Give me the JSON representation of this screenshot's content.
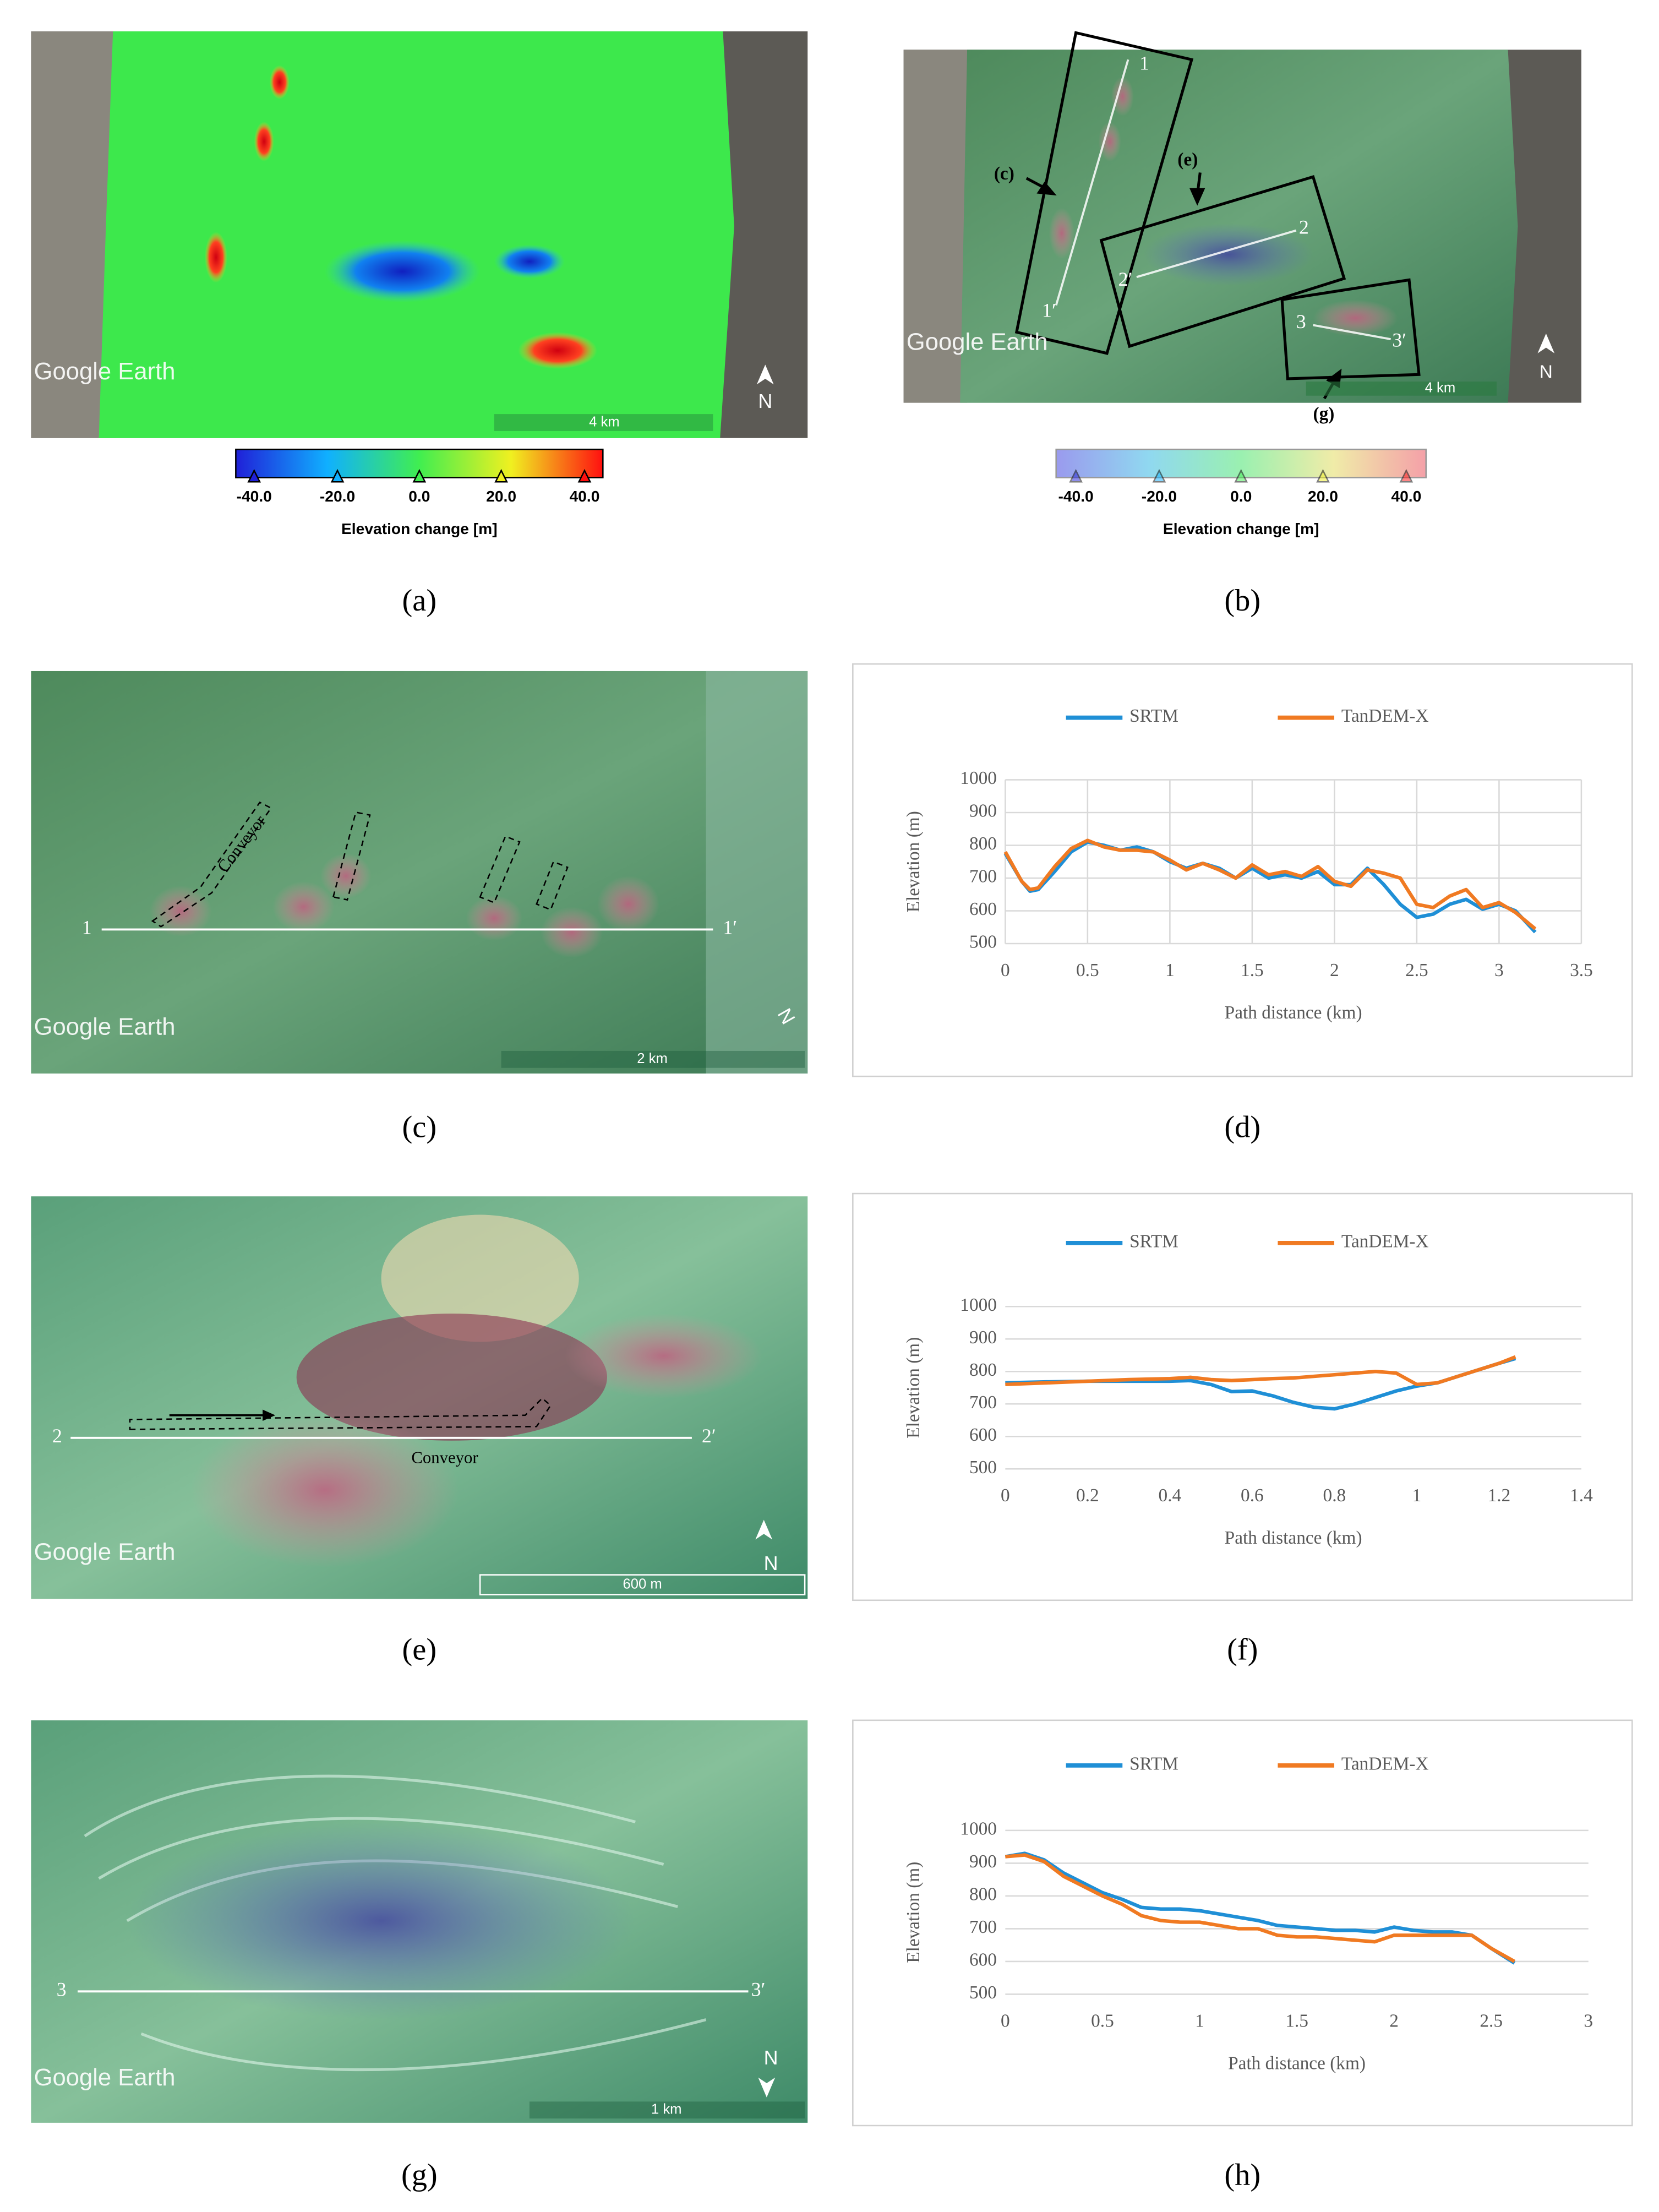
{
  "figure": {
    "panel_a": {
      "watermark": "Google Earth",
      "scale": "4 km",
      "north": "N",
      "colorbar": {
        "ticks": [
          "-40.0",
          "-20.0",
          "0.0",
          "20.0",
          "40.0"
        ],
        "title": "Elevation change [m]"
      },
      "caption": "(a)"
    },
    "panel_b": {
      "watermark": "Google Earth",
      "scale": "4 km",
      "north": "N",
      "profiles": [
        "1",
        "1′",
        "2",
        "2′",
        "3",
        "3′"
      ],
      "insets": [
        "(c)",
        "(e)",
        "(g)"
      ],
      "colorbar": {
        "ticks": [
          "-40.0",
          "-20.0",
          "0.0",
          "20.0",
          "40.0"
        ],
        "title": "Elevation change [m]"
      },
      "caption": "(b)"
    },
    "panel_c": {
      "watermark": "Google Earth",
      "scale": "2 km",
      "north": "N",
      "profile": [
        "1",
        "1′"
      ],
      "annotation": "Conveyor",
      "caption": "(c)"
    },
    "panel_e": {
      "watermark": "Google Earth",
      "scale": "600 m",
      "north": "N",
      "profile": [
        "2",
        "2′"
      ],
      "annotation": "Conveyor",
      "caption": "(e)"
    },
    "panel_g": {
      "watermark": "Google Earth",
      "scale": "1 km",
      "north": "N",
      "profile": [
        "3",
        "3′"
      ],
      "caption": "(g)"
    }
  },
  "chart_data": [
    {
      "type": "line",
      "caption": "(d)",
      "xlabel": "Path distance (km)",
      "ylabel": "Elevation (m)",
      "legend": "top",
      "xgrid": true,
      "ygrid": true,
      "xlim": [
        0,
        3.5
      ],
      "xticks": [
        0,
        0.5,
        1,
        1.5,
        2,
        2.5,
        3,
        3.5
      ],
      "ylim": [
        500,
        1000
      ],
      "yticks": [
        500,
        600,
        700,
        800,
        900,
        1000
      ],
      "x": [
        0,
        0.1,
        0.15,
        0.2,
        0.3,
        0.4,
        0.5,
        0.6,
        0.7,
        0.8,
        0.9,
        1.0,
        1.1,
        1.2,
        1.3,
        1.4,
        1.5,
        1.6,
        1.7,
        1.8,
        1.9,
        2.0,
        2.1,
        2.2,
        2.3,
        2.4,
        2.5,
        2.6,
        2.7,
        2.8,
        2.9,
        3.0,
        3.1,
        3.22
      ],
      "series": [
        {
          "name": "SRTM",
          "color": "#1f8fd6",
          "values": [
            775,
            690,
            660,
            665,
            720,
            780,
            810,
            800,
            785,
            795,
            780,
            750,
            730,
            745,
            730,
            700,
            730,
            700,
            710,
            700,
            720,
            680,
            680,
            730,
            680,
            620,
            580,
            590,
            620,
            635,
            605,
            620,
            600,
            535
          ]
        },
        {
          "name": "TanDEM-X",
          "color": "#f07a22",
          "values": [
            780,
            690,
            665,
            670,
            735,
            790,
            815,
            795,
            785,
            785,
            780,
            755,
            725,
            745,
            725,
            700,
            740,
            710,
            720,
            705,
            735,
            690,
            675,
            725,
            715,
            700,
            620,
            610,
            645,
            665,
            610,
            625,
            595,
            545
          ]
        }
      ]
    },
    {
      "type": "line",
      "caption": "(f)",
      "xlabel": "Path distance (km)",
      "ylabel": "Elevation (m)",
      "legend": "top",
      "xgrid": false,
      "ygrid": true,
      "xlim": [
        0,
        1.4
      ],
      "xticks": [
        0,
        0.2,
        0.4,
        0.6,
        0.8,
        1,
        1.2,
        1.4
      ],
      "ylim": [
        500,
        1000
      ],
      "yticks": [
        500,
        600,
        700,
        800,
        900,
        1000
      ],
      "x": [
        0,
        0.1,
        0.2,
        0.3,
        0.4,
        0.45,
        0.5,
        0.55,
        0.6,
        0.65,
        0.7,
        0.75,
        0.8,
        0.85,
        0.9,
        0.95,
        1.0,
        1.05,
        1.1,
        1.2,
        1.24
      ],
      "series": [
        {
          "name": "SRTM",
          "color": "#1f8fd6",
          "values": [
            765,
            768,
            770,
            770,
            770,
            772,
            760,
            738,
            740,
            725,
            705,
            690,
            685,
            700,
            720,
            740,
            755,
            765,
            785,
            825,
            840
          ]
        },
        {
          "name": "TanDEM-X",
          "color": "#f07a22",
          "values": [
            760,
            765,
            770,
            775,
            778,
            782,
            775,
            772,
            775,
            778,
            780,
            785,
            790,
            795,
            800,
            795,
            760,
            765,
            785,
            825,
            845
          ]
        }
      ]
    },
    {
      "type": "line",
      "caption": "(h)",
      "xlabel": "Path distance (km)",
      "ylabel": "Elevation (m)",
      "legend": "top",
      "xgrid": false,
      "ygrid": true,
      "xlim": [
        0,
        3
      ],
      "xticks": [
        0,
        0.5,
        1,
        1.5,
        2,
        2.5,
        3
      ],
      "ylim": [
        500,
        1000
      ],
      "yticks": [
        500,
        600,
        700,
        800,
        900,
        1000
      ],
      "x": [
        0,
        0.1,
        0.2,
        0.3,
        0.4,
        0.5,
        0.6,
        0.7,
        0.8,
        0.9,
        1.0,
        1.1,
        1.2,
        1.3,
        1.4,
        1.5,
        1.6,
        1.7,
        1.8,
        1.9,
        2.0,
        2.1,
        2.2,
        2.3,
        2.4,
        2.5,
        2.62
      ],
      "series": [
        {
          "name": "SRTM",
          "color": "#1f8fd6",
          "values": [
            920,
            930,
            910,
            870,
            840,
            810,
            790,
            765,
            760,
            760,
            755,
            745,
            735,
            725,
            710,
            705,
            700,
            695,
            695,
            690,
            705,
            695,
            690,
            690,
            680,
            640,
            595
          ]
        },
        {
          "name": "TanDEM-X",
          "color": "#f07a22",
          "values": [
            920,
            925,
            905,
            860,
            830,
            800,
            775,
            740,
            725,
            720,
            720,
            710,
            700,
            700,
            680,
            675,
            675,
            670,
            665,
            660,
            680,
            680,
            680,
            680,
            680,
            640,
            600
          ]
        }
      ]
    }
  ]
}
